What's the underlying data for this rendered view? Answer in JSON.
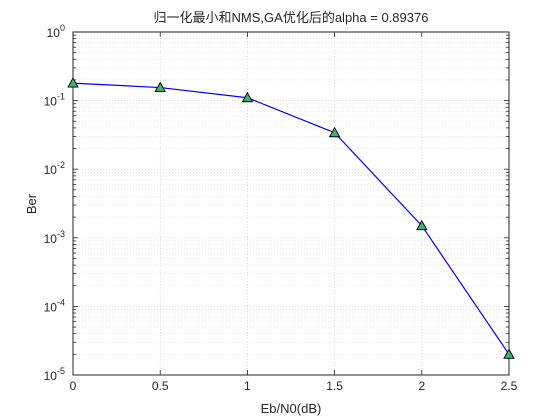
{
  "chart_data": {
    "type": "line",
    "title": "归一化最小和NMS,GA优化后的alpha = 0.89376",
    "xlabel": "Eb/N0(dB)",
    "ylabel": "Ber",
    "xlim": [
      0,
      2.5
    ],
    "ylim": [
      1e-05,
      1
    ],
    "yscale": "log",
    "grid": true,
    "minor_grid": true,
    "x_ticks": [
      {
        "value": 0,
        "label": "0"
      },
      {
        "value": 0.5,
        "label": "0.5"
      },
      {
        "value": 1,
        "label": "1"
      },
      {
        "value": 1.5,
        "label": "1.5"
      },
      {
        "value": 2,
        "label": "2"
      },
      {
        "value": 2.5,
        "label": "2.5"
      }
    ],
    "y_ticks": [
      {
        "value": 1,
        "base": "10",
        "exp": "0"
      },
      {
        "value": 0.1,
        "base": "10",
        "exp": "-1"
      },
      {
        "value": 0.01,
        "base": "10",
        "exp": "-2"
      },
      {
        "value": 0.001,
        "base": "10",
        "exp": "-3"
      },
      {
        "value": 0.0001,
        "base": "10",
        "exp": "-4"
      },
      {
        "value": 1e-05,
        "base": "10",
        "exp": "-5"
      }
    ],
    "series": [
      {
        "line_color": "#0000ff",
        "marker": "triangle",
        "marker_fill": "#3cb371",
        "marker_edge": "#000000",
        "x": [
          0,
          0.5,
          1,
          1.5,
          2,
          2.5
        ],
        "y": [
          0.18,
          0.155,
          0.11,
          0.034,
          0.0015,
          2e-05
        ]
      }
    ]
  }
}
